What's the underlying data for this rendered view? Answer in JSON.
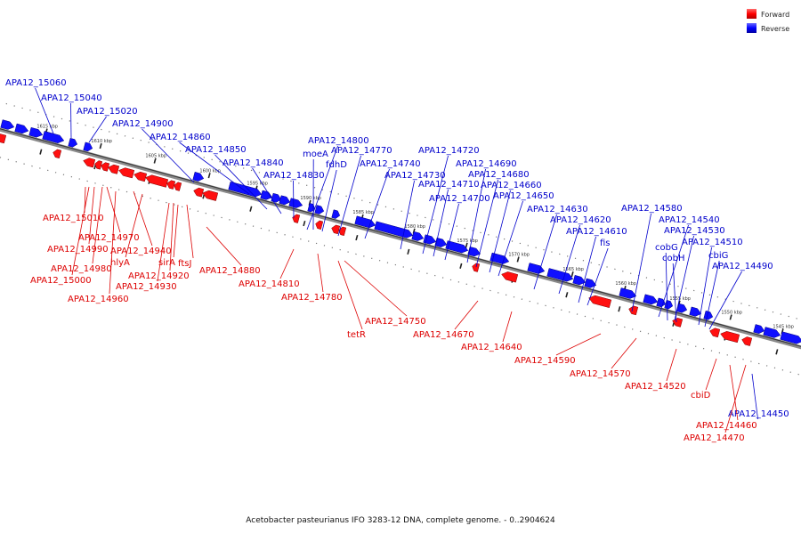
{
  "caption": "Acetobacter pasteurianus IFO 3283-12 DNA, complete genome. - 0..2904624",
  "legend": [
    {
      "label": "Forward",
      "color": "#ff0000"
    },
    {
      "label": "Reverse",
      "color": "#0000ff"
    }
  ],
  "ticks": [
    "1615 kbp",
    "1610 kbp",
    "1605 kbp",
    "1600 kbp",
    "1595 kbp",
    "1590 kbp",
    "1585 kbp",
    "1580 kbp",
    "1575 kbp",
    "1570 kbp",
    "1565 kbp",
    "1560 kbp",
    "1555 kbp",
    "1550 kbp",
    "1545 kbp"
  ],
  "reverse_labels": [
    "APA12_15060",
    "APA12_15040",
    "APA12_15020",
    "APA12_14900",
    "APA12_14860",
    "APA12_14850",
    "APA12_14840",
    "APA12_14830",
    "APA12_14800",
    "moeA",
    "APA12_14770",
    "fdhD",
    "APA12_14740",
    "APA12_14730",
    "APA12_14720",
    "APA12_14710",
    "APA12_14700",
    "APA12_14690",
    "APA12_14680",
    "APA12_14660",
    "APA12_14650",
    "APA12_14630",
    "APA12_14620",
    "APA12_14610",
    "fis",
    "APA12_14580",
    "APA12_14540",
    "cobG",
    "APA12_14530",
    "cobH",
    "APA12_14510",
    "cbiG",
    "APA12_14490",
    "APA12_14450"
  ],
  "forward_labels": [
    "APA12_15010",
    "APA12_14970",
    "APA12_14990",
    "APA12_14940",
    "hlyA",
    "APA12_14980",
    "sirA",
    "ftsJ",
    "APA12_15000",
    "APA12_14920",
    "APA12_14930",
    "APA12_14880",
    "APA12_14960",
    "APA12_14810",
    "APA12_14780",
    "tetR",
    "APA12_14750",
    "APA12_14670",
    "APA12_14640",
    "APA12_14590",
    "APA12_14570",
    "APA12_14520",
    "cbiD",
    "APA12_14460",
    "APA12_14470"
  ]
}
